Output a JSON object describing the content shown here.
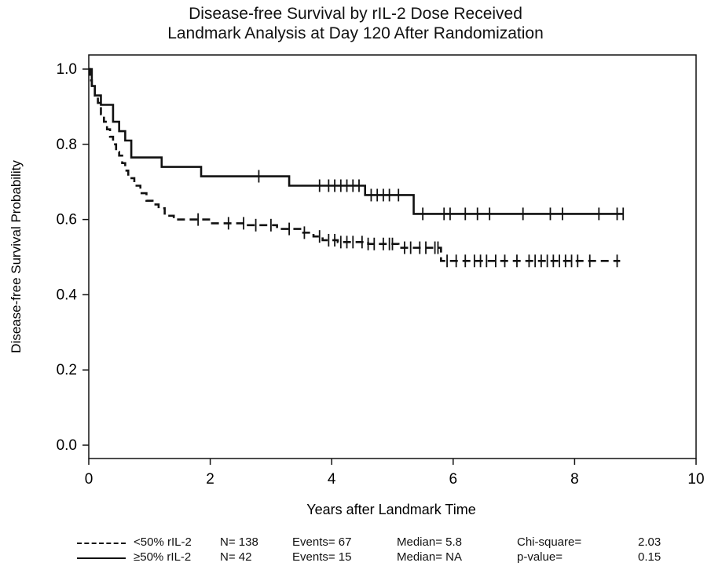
{
  "chart_data": {
    "type": "line",
    "title": "Disease-free Survival by rIL-2 Dose Received",
    "subtitle": "Landmark Analysis at Day 120 After Randomization",
    "xlabel": "Years after Landmark Time",
    "ylabel": "Disease-free Survival Probability",
    "xlim": [
      0,
      10
    ],
    "ylim": [
      0,
      1
    ],
    "xticks": [
      "0",
      "2",
      "4",
      "6",
      "8",
      "10"
    ],
    "yticks": [
      "0.0",
      "0.2",
      "0.4",
      "0.6",
      "0.8",
      "1.0"
    ],
    "grid": false,
    "legend_position": "bottom",
    "series": [
      {
        "name": "<50% rIL-2",
        "style": "dashed",
        "color": "#111111",
        "n": "N= 138",
        "events": "Events= 67",
        "median": "Median= 5.8",
        "stat_label": "Chi-square=",
        "stat_value": "2.03",
        "steps": [
          [
            0,
            1.0
          ],
          [
            0.02,
            0.97
          ],
          [
            0.05,
            0.95
          ],
          [
            0.1,
            0.93
          ],
          [
            0.15,
            0.91
          ],
          [
            0.2,
            0.88
          ],
          [
            0.25,
            0.86
          ],
          [
            0.3,
            0.84
          ],
          [
            0.35,
            0.82
          ],
          [
            0.4,
            0.8
          ],
          [
            0.45,
            0.78
          ],
          [
            0.5,
            0.77
          ],
          [
            0.55,
            0.75
          ],
          [
            0.6,
            0.73
          ],
          [
            0.65,
            0.71
          ],
          [
            0.75,
            0.69
          ],
          [
            0.85,
            0.67
          ],
          [
            0.95,
            0.65
          ],
          [
            1.05,
            0.64
          ],
          [
            1.15,
            0.63
          ],
          [
            1.25,
            0.61
          ],
          [
            1.4,
            0.6
          ],
          [
            2.0,
            0.59
          ],
          [
            2.6,
            0.585
          ],
          [
            3.1,
            0.575
          ],
          [
            3.5,
            0.565
          ],
          [
            3.7,
            0.555
          ],
          [
            3.85,
            0.545
          ],
          [
            4.1,
            0.54
          ],
          [
            4.6,
            0.535
          ],
          [
            5.1,
            0.525
          ],
          [
            5.8,
            0.49
          ],
          [
            8.75,
            0.49
          ]
        ],
        "censors": [
          1.8,
          2.3,
          2.55,
          2.75,
          3.0,
          3.3,
          3.55,
          3.8,
          3.95,
          4.05,
          4.15,
          4.25,
          4.35,
          4.5,
          4.6,
          4.7,
          4.85,
          4.95,
          5.0,
          5.2,
          5.3,
          5.45,
          5.55,
          5.7,
          5.75,
          5.9,
          6.05,
          6.2,
          6.35,
          6.45,
          6.55,
          6.7,
          6.85,
          7.05,
          7.25,
          7.35,
          7.45,
          7.55,
          7.65,
          7.75,
          7.85,
          7.95,
          8.05,
          8.25,
          8.7
        ]
      },
      {
        "name": "≥50% rIL-2",
        "style": "solid",
        "color": "#111111",
        "n": "N= 42",
        "events": "Events= 15",
        "median": "Median= NA",
        "stat_label": "p-value=",
        "stat_value": "0.15",
        "steps": [
          [
            0,
            1.0
          ],
          [
            0.05,
            0.955
          ],
          [
            0.1,
            0.93
          ],
          [
            0.2,
            0.905
          ],
          [
            0.4,
            0.86
          ],
          [
            0.5,
            0.835
          ],
          [
            0.6,
            0.81
          ],
          [
            0.7,
            0.765
          ],
          [
            1.2,
            0.74
          ],
          [
            1.85,
            0.715
          ],
          [
            3.3,
            0.69
          ],
          [
            4.55,
            0.665
          ],
          [
            5.35,
            0.615
          ],
          [
            8.8,
            0.615
          ]
        ],
        "censors": [
          2.8,
          3.8,
          3.95,
          4.05,
          4.15,
          4.25,
          4.35,
          4.45,
          4.65,
          4.75,
          4.85,
          4.95,
          5.1,
          5.5,
          5.85,
          5.95,
          6.2,
          6.4,
          6.6,
          7.15,
          7.6,
          7.8,
          8.4,
          8.7,
          8.8
        ]
      }
    ]
  }
}
